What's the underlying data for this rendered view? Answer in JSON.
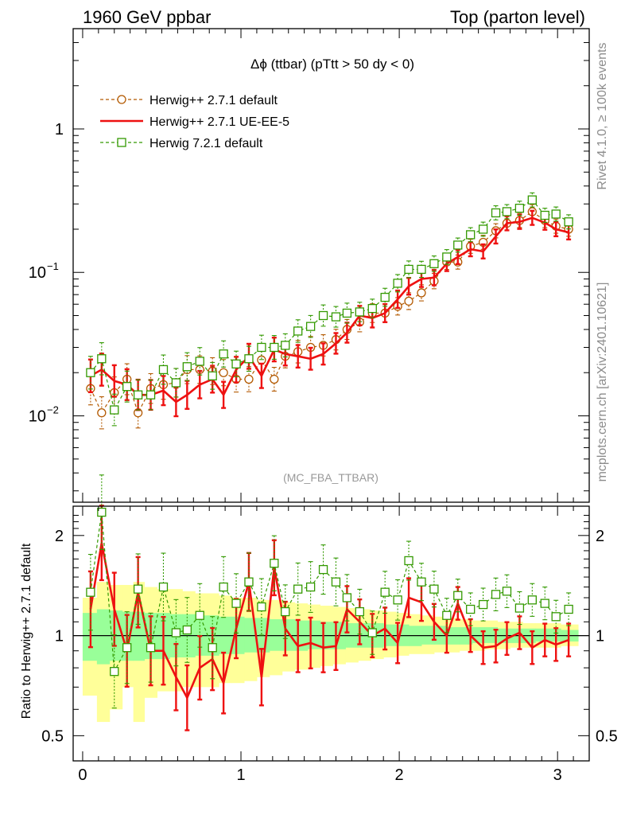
{
  "header": {
    "left_label": "1960 GeV ppbar",
    "right_label": "Top (parton level)"
  },
  "side_labels": {
    "rivet": "Rivet 4.1.0, ≥ 100k events",
    "mcplots": "mcplots.cern.ch [arXiv:2401.10621]"
  },
  "chart_data": [
    {
      "type": "line",
      "title": "Δϕ (ttbar) (pTtt > 50 dy < 0)",
      "watermark": "(MC_FBA_TTBAR)",
      "yscale": "log",
      "xlim": [
        -0.06,
        3.2
      ],
      "ylim": [
        0.0025,
        5.0
      ],
      "x_ticks": [
        "0",
        "1",
        "2",
        "3"
      ],
      "y_tick_labels": {
        "one": "1",
        "tenth_base": "10",
        "tenth_exp": "−1",
        "hundredth_base": "10",
        "hundredth_exp": "−2"
      },
      "legend": {
        "placement": "top-left"
      },
      "x": [
        0.05,
        0.12,
        0.2,
        0.28,
        0.35,
        0.43,
        0.51,
        0.59,
        0.66,
        0.74,
        0.82,
        0.89,
        0.97,
        1.05,
        1.13,
        1.21,
        1.28,
        1.36,
        1.44,
        1.52,
        1.6,
        1.67,
        1.75,
        1.83,
        1.91,
        1.99,
        2.06,
        2.14,
        2.22,
        2.3,
        2.37,
        2.45,
        2.53,
        2.61,
        2.68,
        2.76,
        2.84,
        2.92,
        2.99,
        3.07
      ],
      "series": [
        {
          "name": "Herwig++ 2.7.1 default",
          "color": "#b35900",
          "style": "dashed-circle",
          "values": [
            0.0155,
            0.0105,
            0.0145,
            0.018,
            0.0105,
            0.0155,
            0.0165,
            0.017,
            0.021,
            0.021,
            0.0205,
            0.02,
            0.018,
            0.018,
            0.0245,
            0.018,
            0.026,
            0.028,
            0.03,
            0.031,
            0.034,
            0.04,
            0.045,
            0.052,
            0.052,
            0.058,
            0.063,
            0.072,
            0.087,
            0.118,
            0.118,
            0.152,
            0.162,
            0.195,
            0.22,
            0.23,
            0.265,
            0.23,
            0.21,
            0.2
          ]
        },
        {
          "name": "Herwig++ 2.7.1 UE-EE-5",
          "color": "#ee1111",
          "style": "solid",
          "values": [
            0.019,
            0.021,
            0.0175,
            0.0165,
            0.014,
            0.014,
            0.015,
            0.0125,
            0.014,
            0.0165,
            0.018,
            0.014,
            0.021,
            0.026,
            0.019,
            0.029,
            0.027,
            0.026,
            0.025,
            0.027,
            0.032,
            0.038,
            0.05,
            0.048,
            0.052,
            0.065,
            0.08,
            0.09,
            0.092,
            0.115,
            0.128,
            0.145,
            0.14,
            0.178,
            0.22,
            0.225,
            0.24,
            0.222,
            0.2,
            0.19
          ]
        },
        {
          "name": "Herwig 7.2.1 default",
          "color": "#339900",
          "style": "dashed-square",
          "values": [
            0.02,
            0.025,
            0.011,
            0.016,
            0.014,
            0.014,
            0.021,
            0.017,
            0.022,
            0.024,
            0.019,
            0.027,
            0.023,
            0.025,
            0.03,
            0.03,
            0.031,
            0.039,
            0.042,
            0.05,
            0.049,
            0.052,
            0.053,
            0.056,
            0.067,
            0.084,
            0.105,
            0.105,
            0.115,
            0.128,
            0.155,
            0.183,
            0.2,
            0.26,
            0.265,
            0.28,
            0.32,
            0.25,
            0.255,
            0.225
          ]
        }
      ]
    },
    {
      "type": "line",
      "ylabel": "Ratio to Herwig++ 2.7.1 default",
      "yscale": "log",
      "xlim": [
        -0.06,
        3.2
      ],
      "ylim": [
        0.42,
        2.45
      ],
      "x_ticks": [
        "0",
        "1",
        "2",
        "3"
      ],
      "y_ticks": [
        "0.5",
        "1",
        "2"
      ],
      "reference_line": 1,
      "x": [
        0.05,
        0.12,
        0.2,
        0.28,
        0.35,
        0.43,
        0.51,
        0.59,
        0.66,
        0.74,
        0.82,
        0.89,
        0.97,
        1.05,
        1.13,
        1.21,
        1.28,
        1.36,
        1.44,
        1.52,
        1.6,
        1.67,
        1.75,
        1.83,
        1.91,
        1.99,
        2.06,
        2.14,
        2.22,
        2.3,
        2.37,
        2.45,
        2.53,
        2.61,
        2.68,
        2.76,
        2.84,
        2.92,
        2.99,
        3.07
      ],
      "band_edges": [
        0.0,
        0.09,
        0.17,
        0.25,
        0.32,
        0.39,
        0.47,
        0.55,
        0.63,
        0.71,
        0.79,
        0.86,
        0.94,
        1.02,
        1.1,
        1.18,
        1.26,
        1.34,
        1.42,
        1.5,
        1.58,
        1.66,
        1.74,
        1.82,
        1.9,
        1.98,
        2.06,
        2.14,
        2.22,
        2.3,
        2.38,
        2.46,
        2.54,
        2.62,
        2.7,
        2.78,
        2.86,
        2.94,
        3.02,
        3.1
      ],
      "band_yellow": [
        [
          0.66,
          1.3
        ],
        [
          0.55,
          1.45
        ],
        [
          0.6,
          1.42
        ],
        [
          0.7,
          1.42
        ],
        [
          0.55,
          1.45
        ],
        [
          0.65,
          1.4
        ],
        [
          0.68,
          1.38
        ],
        [
          0.68,
          1.38
        ],
        [
          0.7,
          1.36
        ],
        [
          0.7,
          1.34
        ],
        [
          0.7,
          1.34
        ],
        [
          0.72,
          1.32
        ],
        [
          0.72,
          1.3
        ],
        [
          0.73,
          1.3
        ],
        [
          0.75,
          1.28
        ],
        [
          0.76,
          1.28
        ],
        [
          0.78,
          1.26
        ],
        [
          0.79,
          1.25
        ],
        [
          0.8,
          1.24
        ],
        [
          0.81,
          1.23
        ],
        [
          0.82,
          1.22
        ],
        [
          0.83,
          1.21
        ],
        [
          0.84,
          1.2
        ],
        [
          0.85,
          1.19
        ],
        [
          0.86,
          1.18
        ],
        [
          0.87,
          1.17
        ],
        [
          0.88,
          1.16
        ],
        [
          0.88,
          1.15
        ],
        [
          0.89,
          1.14
        ],
        [
          0.89,
          1.13
        ],
        [
          0.9,
          1.12
        ],
        [
          0.9,
          1.11
        ],
        [
          0.91,
          1.11
        ],
        [
          0.91,
          1.1
        ],
        [
          0.92,
          1.1
        ],
        [
          0.92,
          1.09
        ],
        [
          0.92,
          1.09
        ],
        [
          0.92,
          1.09
        ],
        [
          0.93,
          1.08
        ],
        [
          0.93,
          1.08
        ]
      ],
      "band_green": [
        [
          0.84,
          1.17
        ],
        [
          0.82,
          1.2
        ],
        [
          0.84,
          1.19
        ],
        [
          0.84,
          1.18
        ],
        [
          0.84,
          1.18
        ],
        [
          0.85,
          1.17
        ],
        [
          0.85,
          1.17
        ],
        [
          0.86,
          1.16
        ],
        [
          0.86,
          1.16
        ],
        [
          0.87,
          1.15
        ],
        [
          0.87,
          1.15
        ],
        [
          0.88,
          1.14
        ],
        [
          0.88,
          1.14
        ],
        [
          0.89,
          1.13
        ],
        [
          0.89,
          1.13
        ],
        [
          0.9,
          1.12
        ],
        [
          0.9,
          1.12
        ],
        [
          0.9,
          1.11
        ],
        [
          0.91,
          1.11
        ],
        [
          0.91,
          1.1
        ],
        [
          0.91,
          1.1
        ],
        [
          0.92,
          1.09
        ],
        [
          0.92,
          1.09
        ],
        [
          0.92,
          1.09
        ],
        [
          0.93,
          1.08
        ],
        [
          0.93,
          1.08
        ],
        [
          0.93,
          1.07
        ],
        [
          0.94,
          1.07
        ],
        [
          0.94,
          1.07
        ],
        [
          0.94,
          1.06
        ],
        [
          0.94,
          1.06
        ],
        [
          0.95,
          1.06
        ],
        [
          0.95,
          1.06
        ],
        [
          0.95,
          1.05
        ],
        [
          0.95,
          1.05
        ],
        [
          0.95,
          1.05
        ],
        [
          0.96,
          1.05
        ],
        [
          0.96,
          1.05
        ],
        [
          0.96,
          1.04
        ],
        [
          0.96,
          1.04
        ]
      ],
      "series": [
        {
          "name": "Herwig++ 2.7.1 UE-EE-5",
          "color": "#ee1111",
          "style": "solid",
          "values": [
            1.2,
            1.9,
            1.2,
            0.9,
            1.35,
            0.9,
            0.9,
            0.75,
            0.65,
            0.8,
            0.85,
            0.72,
            1.05,
            1.45,
            0.75,
            1.6,
            1.05,
            0.93,
            0.95,
            0.92,
            0.93,
            1.2,
            1.1,
            1.0,
            1.05,
            0.95,
            1.3,
            1.26,
            1.1,
            1.0,
            1.25,
            1.0,
            0.92,
            0.93,
            0.98,
            1.02,
            0.92,
            0.97,
            0.94,
            0.97
          ]
        },
        {
          "name": "Herwig 7.2.1 default",
          "color": "#339900",
          "style": "dashed-square",
          "values": [
            1.35,
            2.35,
            0.78,
            0.92,
            1.38,
            0.92,
            1.4,
            1.02,
            1.04,
            1.15,
            0.92,
            1.4,
            1.25,
            1.45,
            1.22,
            1.65,
            1.18,
            1.38,
            1.4,
            1.58,
            1.45,
            1.3,
            1.18,
            1.02,
            1.35,
            1.28,
            1.68,
            1.45,
            1.38,
            1.15,
            1.32,
            1.2,
            1.24,
            1.33,
            1.36,
            1.21,
            1.28,
            1.25,
            1.14,
            1.2
          ]
        }
      ]
    }
  ]
}
